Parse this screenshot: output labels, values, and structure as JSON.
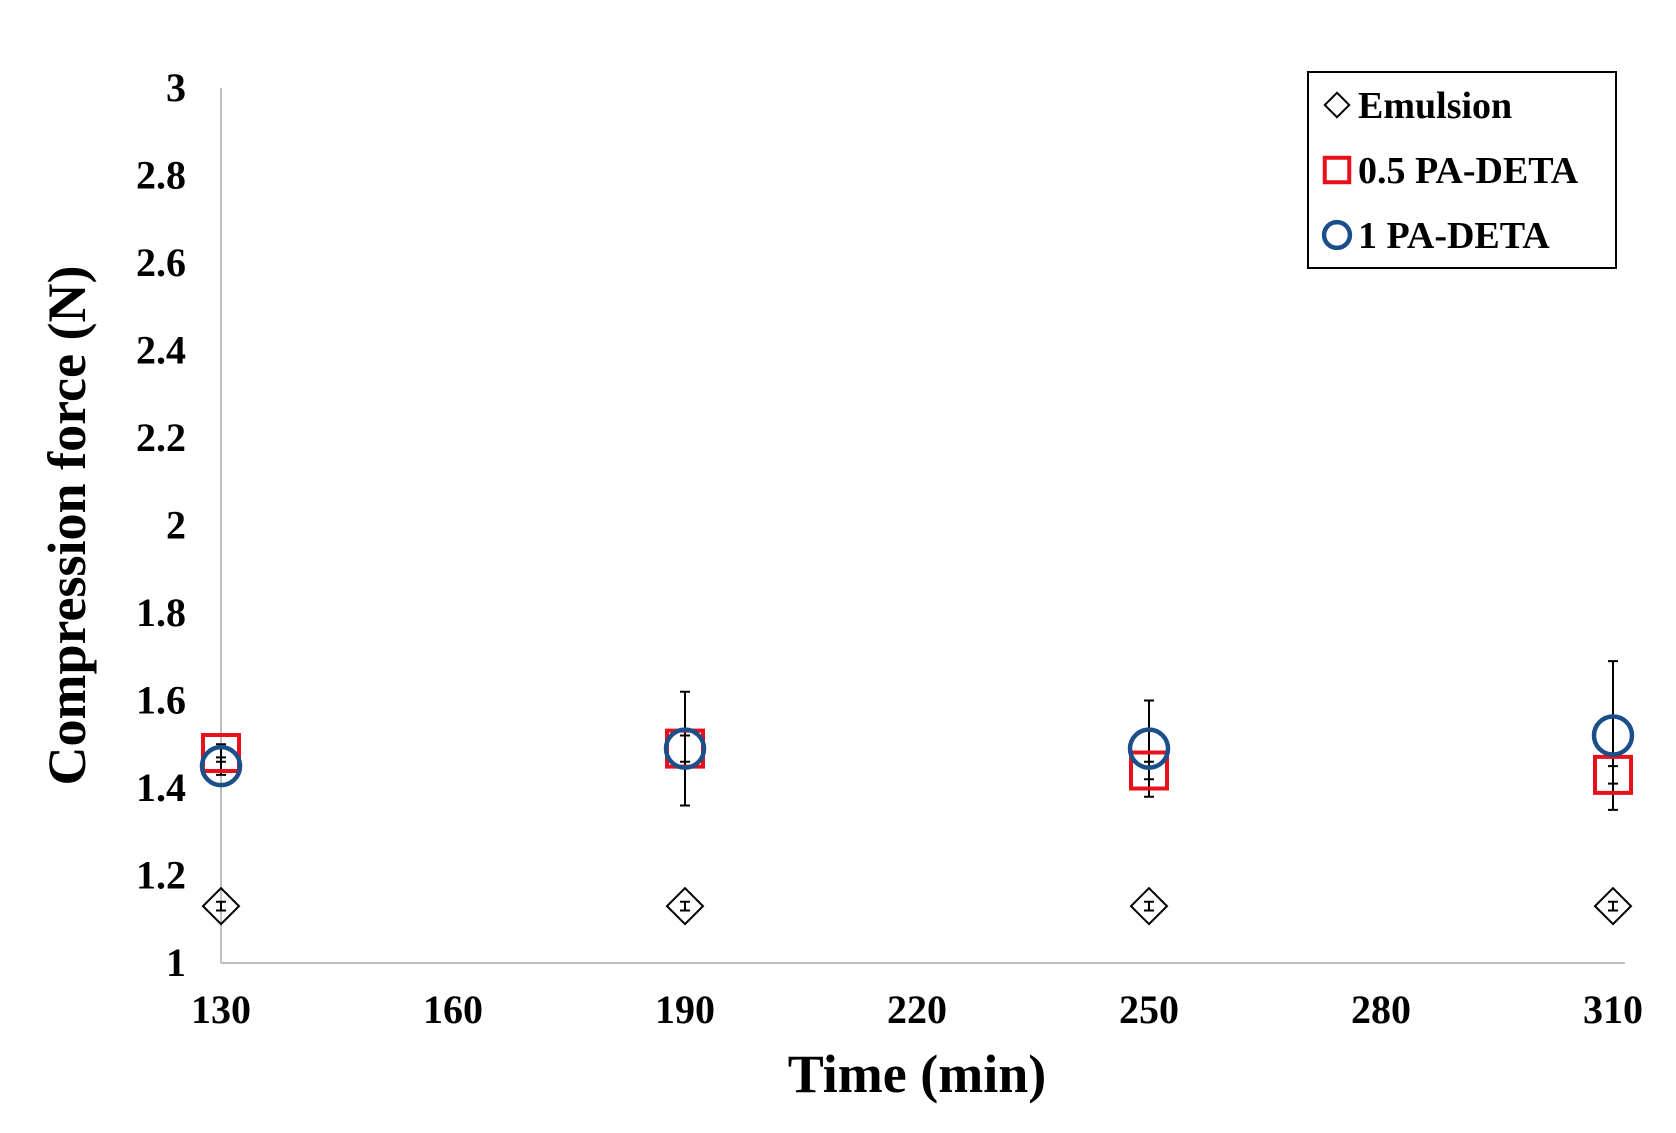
{
  "chart_data": {
    "type": "scatter",
    "title": "",
    "xlabel": "Time (min)",
    "ylabel": "Compression force (N)",
    "xlim": [
      130,
      310
    ],
    "ylim": [
      1,
      3
    ],
    "x_ticks": [
      "130",
      "160",
      "190",
      "220",
      "250",
      "280",
      "310"
    ],
    "y_ticks": [
      "1",
      "1.2",
      "1.4",
      "1.6",
      "1.8",
      "2",
      "2.2",
      "2.4",
      "2.6",
      "2.8",
      "3"
    ],
    "grid": false,
    "legend_position": "top-right",
    "series": [
      {
        "name": "Emulsion",
        "marker": "diamond",
        "color": "#000000",
        "x": [
          130,
          190,
          250,
          310
        ],
        "y": [
          1.13,
          1.13,
          1.13,
          1.13
        ],
        "error": [
          0.01,
          0.01,
          0.01,
          0.01
        ]
      },
      {
        "name": "0.5 PA-DETA",
        "marker": "square",
        "color": "#e8101a",
        "x": [
          130,
          190,
          250,
          310
        ],
        "y": [
          1.48,
          1.49,
          1.44,
          1.43
        ],
        "error": [
          0.02,
          0.03,
          0.02,
          0.02
        ]
      },
      {
        "name": "1 PA-DETA",
        "marker": "circle",
        "color": "#1b4f8a",
        "x": [
          130,
          190,
          250,
          310
        ],
        "y": [
          1.45,
          1.49,
          1.49,
          1.52
        ],
        "error": [
          0.02,
          0.13,
          0.11,
          0.17
        ]
      }
    ]
  }
}
